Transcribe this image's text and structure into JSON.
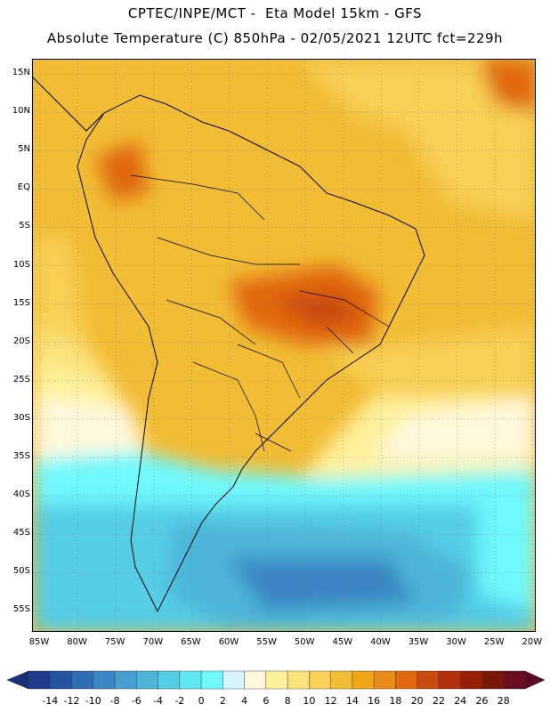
{
  "header": {
    "title_line1": "CPTEC/INPE/MCT -  Eta Model 15km - GFS",
    "title_line2": "Absolute Temperature (C) 850hPa - 02/05/2021 12UTC fct=229h"
  },
  "map": {
    "lat_labels": [
      "15N",
      "10N",
      "5N",
      "EQ",
      "5S",
      "10S",
      "15S",
      "20S",
      "25S",
      "30S",
      "35S",
      "40S",
      "45S",
      "50S",
      "55S"
    ],
    "lon_labels": [
      "85W",
      "80W",
      "75W",
      "70W",
      "65W",
      "60W",
      "55W",
      "50W",
      "45W",
      "40W",
      "35W",
      "30W",
      "25W",
      "20W"
    ],
    "colors": {
      "land_border": "#000000",
      "grid": "#808080"
    }
  },
  "colorbar": {
    "labels": [
      "-14",
      "-12",
      "-10",
      "-8",
      "-6",
      "-4",
      "-2",
      "0",
      "2",
      "4",
      "6",
      "8",
      "10",
      "12",
      "14",
      "16",
      "18",
      "20",
      "22",
      "24",
      "26",
      "28"
    ],
    "colors": [
      "#1e3c8c",
      "#2554a0",
      "#2d6eb4",
      "#3a86c4",
      "#4a9dd0",
      "#4cb5d9",
      "#55cde5",
      "#60e6f0",
      "#6ef8fc",
      "#d6f4fc",
      "#fff8dc",
      "#fff19c",
      "#fbe27a",
      "#f7d054",
      "#f2bc34",
      "#f0a514",
      "#ea8a1a",
      "#e06810",
      "#c84a0c",
      "#b4300a",
      "#962008",
      "#7a1808",
      "#6a0e22"
    ]
  }
}
